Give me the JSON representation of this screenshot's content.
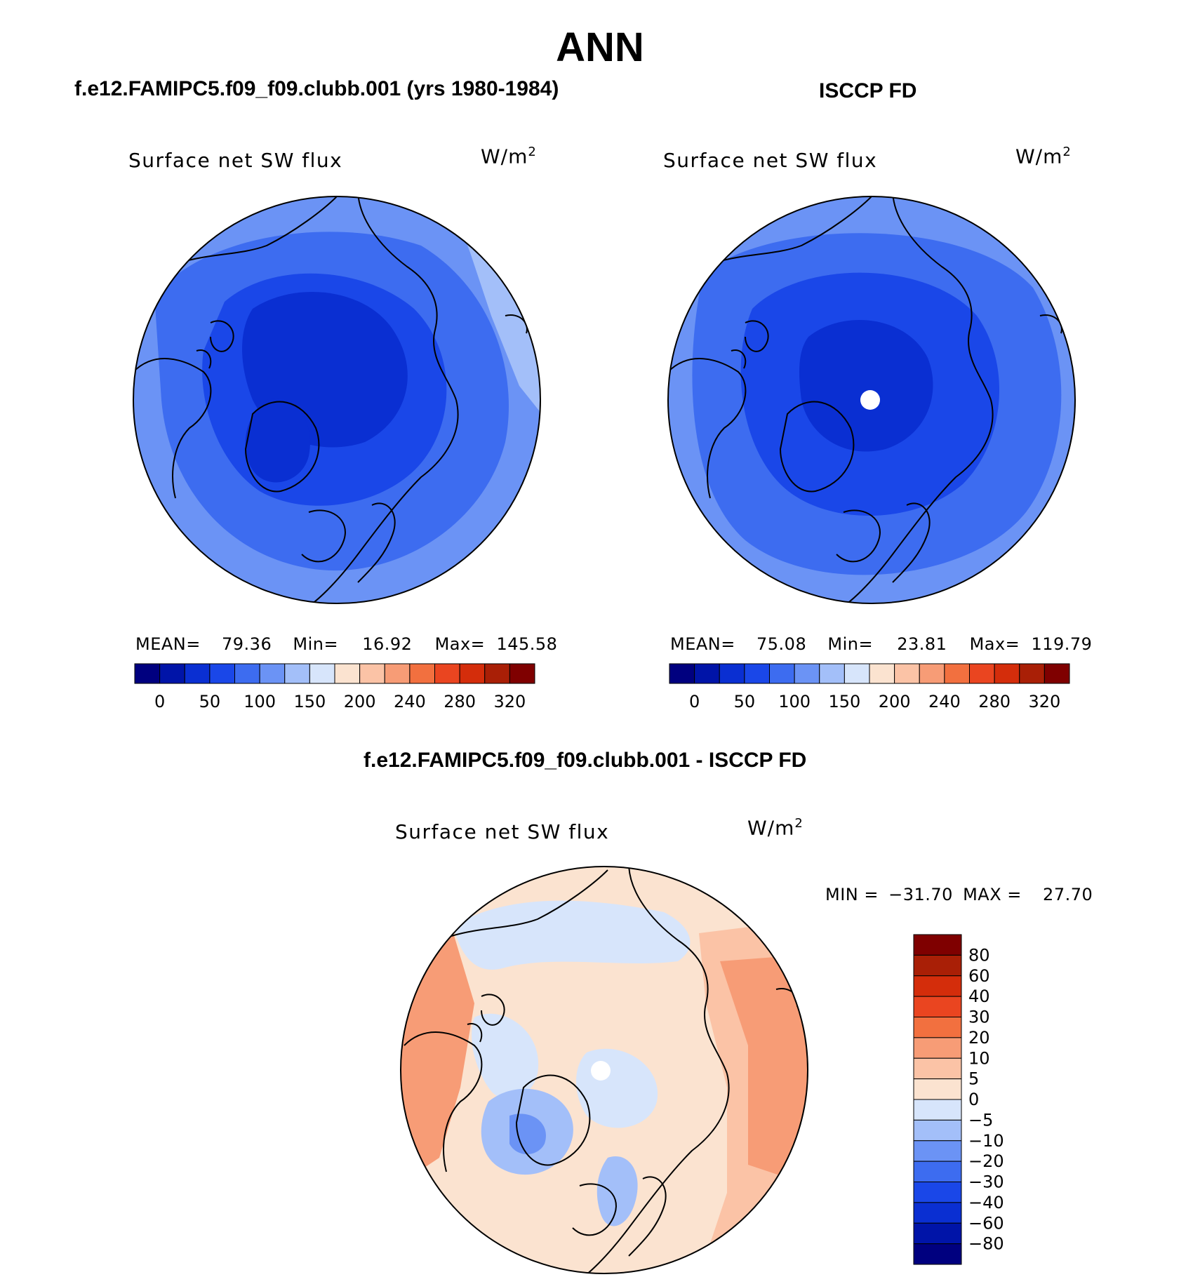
{
  "page_title": "ANN",
  "panels": {
    "model": {
      "run_title": "f.e12.FAMIPC5.f09_f09.clubb.001 (yrs 1980-1984)",
      "variable": "Surface net SW flux",
      "units_base": "W/m",
      "units_exp": "2",
      "stats": {
        "mean_label": "MEAN=",
        "mean": "79.36",
        "min_label": "Min=",
        "min": "16.92",
        "max_label": "Max=",
        "max": "145.58"
      }
    },
    "obs": {
      "run_title": "ISCCP FD",
      "variable": "Surface net SW flux",
      "units_base": "W/m",
      "units_exp": "2",
      "stats": {
        "mean_label": "MEAN=",
        "mean": "75.08",
        "min_label": "Min=",
        "min": "23.81",
        "max_label": "Max=",
        "max": "119.79"
      }
    },
    "diff": {
      "run_title": "f.e12.FAMIPC5.f09_f09.clubb.001 - ISCCP FD",
      "variable": "Surface net SW flux",
      "units_base": "W/m",
      "units_exp": "2",
      "stats": {
        "min_label": "MIN =",
        "min": "−31.70",
        "max_label": "MAX =",
        "max": "27.70"
      }
    }
  },
  "abs_colorbar": {
    "colors": [
      "#00007f",
      "#0014a8",
      "#0a2fd2",
      "#1a47e8",
      "#3d6cf0",
      "#6b93f5",
      "#a3bff9",
      "#d7e5fb",
      "#fbe3d0",
      "#fbc3a6",
      "#f79c76",
      "#f2703f",
      "#ea4520",
      "#d42d0b",
      "#a91f06",
      "#7f0000"
    ],
    "tick_labels": [
      "0",
      "50",
      "100",
      "150",
      "200",
      "240",
      "280",
      "320"
    ]
  },
  "diff_colorbar": {
    "colors": [
      "#7f0000",
      "#a91f06",
      "#d42d0b",
      "#ea4520",
      "#f2703f",
      "#f79c76",
      "#fbc3a6",
      "#fbe3d0",
      "#d7e5fb",
      "#a3bff9",
      "#6b93f5",
      "#3d6cf0",
      "#1a47e8",
      "#0a2fd2",
      "#0014a8",
      "#00007f"
    ],
    "tick_labels": [
      "80",
      "60",
      "40",
      "30",
      "20",
      "10",
      "5",
      "0",
      "−5",
      "−10",
      "−20",
      "−30",
      "−40",
      "−60",
      "−80"
    ]
  },
  "map_colors": {
    "deep": "#0a2fd2",
    "dark": "#1a47e8",
    "mid": "#3d6cf0",
    "light": "#6b93f5",
    "pale": "#a3bff9",
    "coast": "#000000",
    "diff_base": "#fbe3d0",
    "diff_warm": "#fbc3a6",
    "diff_warmer": "#f79c76",
    "diff_cool": "#d7e5fb",
    "diff_cooler": "#a3bff9",
    "diff_coolest": "#6b93f5"
  }
}
